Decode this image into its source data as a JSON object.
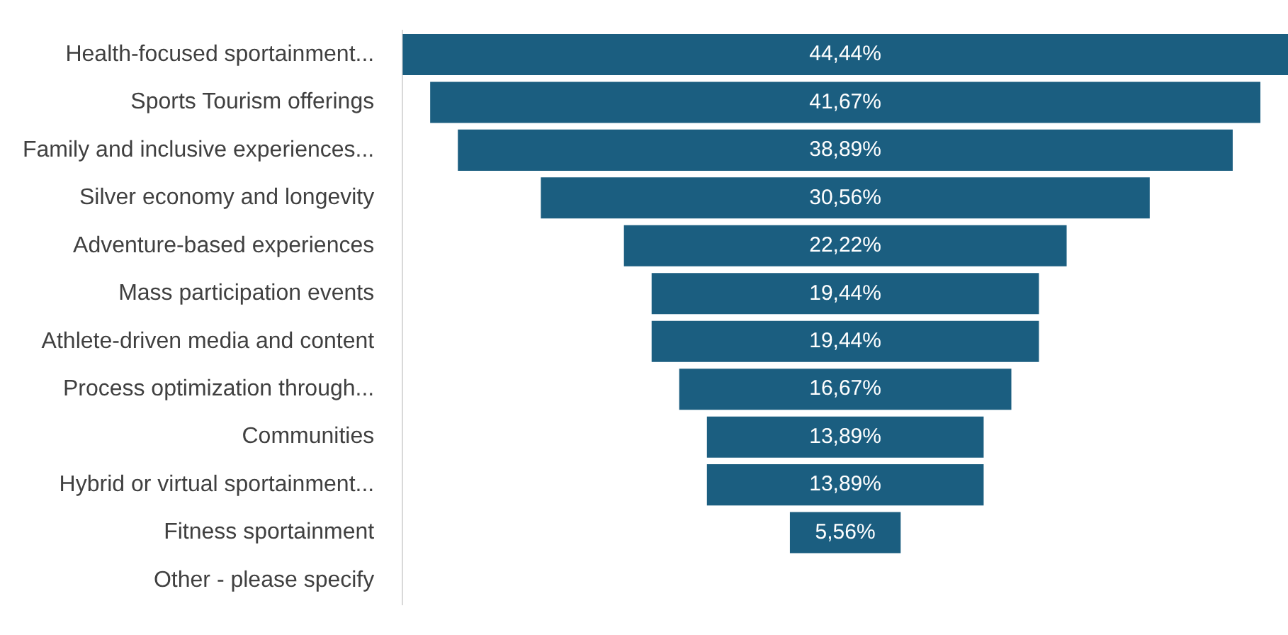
{
  "chart_data": {
    "type": "other",
    "categories": [
      "Health-focused sportainment...",
      "Sports Tourism offerings",
      "Family and inclusive experiences...",
      "Silver economy and longevity",
      "Adventure-based experiences",
      "Mass participation events",
      "Athlete-driven media and content",
      "Process optimization through...",
      "Communities",
      "Hybrid or virtual sportainment...",
      "Fitness sportainment",
      "Other - please specify"
    ],
    "values": [
      44.44,
      41.67,
      38.89,
      30.56,
      22.22,
      19.44,
      19.44,
      16.67,
      13.89,
      13.89,
      5.56,
      null
    ],
    "value_labels": [
      "44,44%",
      "41,67%",
      "38,89%",
      "30,56%",
      "22,22%",
      "19,44%",
      "19,44%",
      "16,67%",
      "13,89%",
      "13,89%",
      "5,56%",
      null
    ],
    "color": "#1b5e80"
  }
}
